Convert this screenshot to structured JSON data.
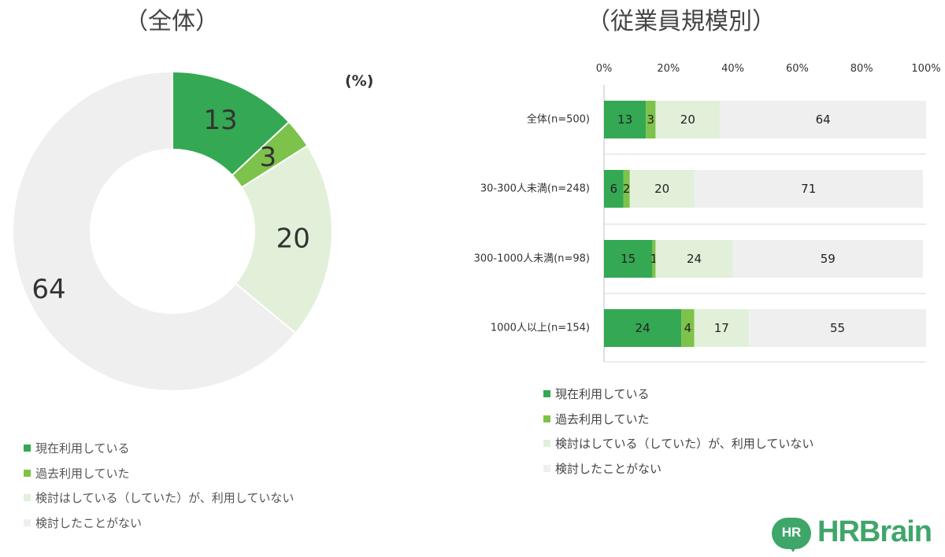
{
  "colors": {
    "current": "#34a853",
    "past": "#7dc24b",
    "considered": "#e2f0d9",
    "never": "#efefef",
    "brand": "#3fa66a"
  },
  "unit": "(%)",
  "legend_items": [
    "現在利用している",
    "過去利用していた",
    "検討はしている（していた）が、利用していない",
    "検討したことがない"
  ],
  "logo": {
    "bubble": "HR",
    "word": "HRBrain"
  },
  "chart_data": [
    {
      "type": "pie",
      "title": "（全体）",
      "labels": [
        "現在利用している",
        "過去利用していた",
        "検討はしている（していた）が、利用していない",
        "検討したことがない"
      ],
      "values": [
        13,
        3,
        20,
        64
      ],
      "legend": "bottom-left",
      "donut": true
    },
    {
      "type": "bar",
      "orientation": "horizontal",
      "stacked": true,
      "title": "（従業員規模別）",
      "categories": [
        "全体(n=500)",
        "30-300人未満(n=248)",
        "300-1000人未満(n=98)",
        "1000人以上(n=154)"
      ],
      "series": [
        {
          "name": "現在利用している",
          "values": [
            13,
            6,
            15,
            24
          ]
        },
        {
          "name": "過去利用していた",
          "values": [
            3,
            2,
            1,
            4
          ]
        },
        {
          "name": "検討はしている（していた）が、利用していない",
          "values": [
            20,
            20,
            24,
            17
          ]
        },
        {
          "name": "検討したことがない",
          "values": [
            64,
            71,
            59,
            55
          ]
        }
      ],
      "xlim": [
        0,
        100
      ],
      "xticks": [
        "0%",
        "20%",
        "40%",
        "60%",
        "80%",
        "100%"
      ],
      "legend": "bottom-left",
      "grid": false
    }
  ]
}
